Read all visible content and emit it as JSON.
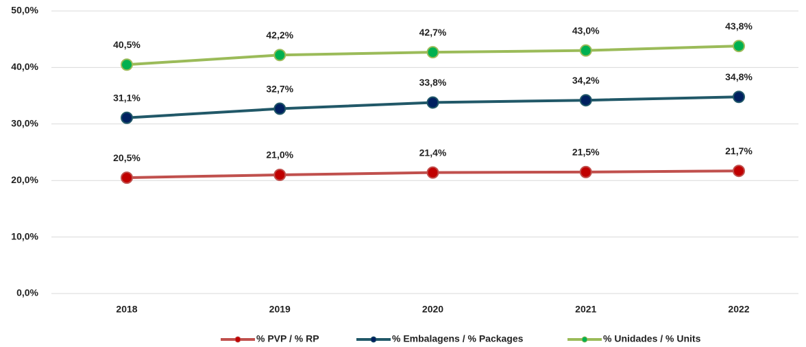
{
  "chart_data": {
    "type": "line",
    "categories": [
      "2018",
      "2019",
      "2020",
      "2021",
      "2022"
    ],
    "series": [
      {
        "name": "% PVP / % RP",
        "color": "#c0504d",
        "marker_color": "#c00000",
        "values": [
          20.5,
          21.0,
          21.4,
          21.5,
          21.7
        ],
        "value_labels": [
          "20,5%",
          "21,0%",
          "21,4%",
          "21,5%",
          "21,7%"
        ]
      },
      {
        "name": "% Embalagens / % Packages",
        "color": "#215868",
        "marker_color": "#002060",
        "values": [
          31.1,
          32.7,
          33.8,
          34.2,
          34.8
        ],
        "value_labels": [
          "31,1%",
          "32,7%",
          "33,8%",
          "34,2%",
          "34,8%"
        ]
      },
      {
        "name": "% Unidades / % Units",
        "color": "#9bbb59",
        "marker_color": "#00b050",
        "values": [
          40.5,
          42.2,
          42.7,
          43.0,
          43.8
        ],
        "value_labels": [
          "40,5%",
          "42,2%",
          "42,7%",
          "43,0%",
          "43,8%"
        ]
      }
    ],
    "ylim": [
      0,
      50
    ],
    "yticks": [
      {
        "value": 0,
        "label": "0,0%"
      },
      {
        "value": 10,
        "label": "10,0%"
      },
      {
        "value": 20,
        "label": "20,0%"
      },
      {
        "value": 30,
        "label": "30,0%"
      },
      {
        "value": 40,
        "label": "40,0%"
      },
      {
        "value": 50,
        "label": "50,0%"
      }
    ],
    "grid": true,
    "legend": "bottom"
  }
}
